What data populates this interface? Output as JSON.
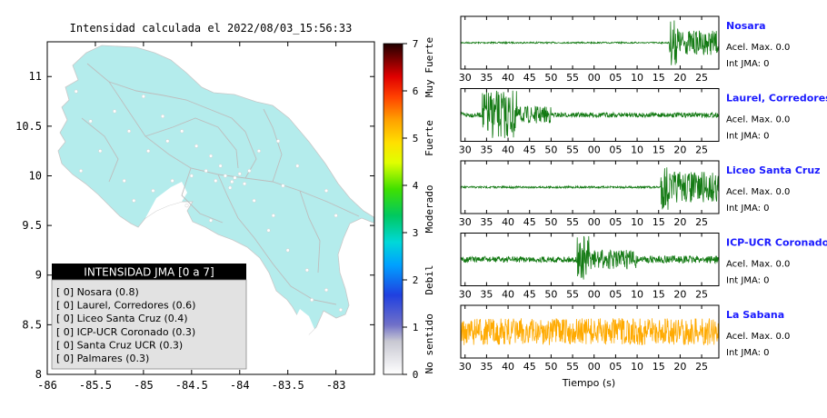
{
  "map": {
    "title": "Intensidad calculada el 2022/08/03_15:56:33",
    "sea_color": "#ffffff",
    "land_color": "#b4ecec",
    "x_ticks": [
      "-86",
      "-85.5",
      "-85",
      "-84.5",
      "-84",
      "-83.5",
      "-83"
    ],
    "y_ticks": [
      "11",
      "10.5",
      "10",
      "9.5",
      "9",
      "8.5",
      "8"
    ],
    "legend": {
      "title": "INTENSIDAD JMA [0 a 7]",
      "items": [
        "[ 0]  Nosara (0.8)",
        "[ 0]  Laurel, Corredores (0.6)",
        "[ 0]  Liceo Santa Cruz (0.4)",
        "[ 0]  ICP-UCR Coronado (0.3)",
        "[ 0]  Santa Cruz UCR (0.3)",
        "[ 0]  Palmares (0.3)"
      ]
    }
  },
  "colorbar": {
    "ticks": [
      "0",
      "1",
      "2",
      "3",
      "4",
      "5",
      "6",
      "7"
    ],
    "labels": [
      "No sentido",
      "Debil",
      "Moderado",
      "Fuerte",
      "Muy Fuerte"
    ]
  },
  "waveforms": {
    "x_axis_label": "Tiempo (s)",
    "panels": [
      {
        "station": "Nosara",
        "acel": "Acel. Max. 0.0",
        "int": "Int JMA: 0",
        "color": "#137a13",
        "ticks": [
          "30",
          "35",
          "40",
          "45",
          "50",
          "55",
          "00",
          "05",
          "10",
          "15",
          "20",
          "25"
        ]
      },
      {
        "station": "Laurel, Corredores",
        "acel": "Acel. Max. 0.0",
        "int": "Int JMA: 0",
        "color": "#137a13",
        "ticks": [
          "30",
          "35",
          "40",
          "45",
          "50",
          "55",
          "00",
          "05",
          "10",
          "15",
          "20",
          "25"
        ]
      },
      {
        "station": "Liceo Santa Cruz",
        "acel": "Acel. Max. 0.0",
        "int": "Int JMA: 0",
        "color": "#137a13",
        "ticks": [
          "30",
          "35",
          "40",
          "45",
          "50",
          "55",
          "00",
          "05",
          "10",
          "15",
          "20",
          "25"
        ]
      },
      {
        "station": "ICP-UCR Coronado",
        "acel": "Acel. Max. 0.0",
        "int": "Int JMA: 0",
        "color": "#137a13",
        "ticks": [
          "30",
          "35",
          "40",
          "45",
          "50",
          "55",
          "00",
          "05",
          "10",
          "15",
          "20",
          "25"
        ]
      },
      {
        "station": "La Sabana",
        "acel": "Acel. Max. 0.0",
        "int": "Int JMA: 0",
        "color": "#ffaa00",
        "ticks": [
          "30",
          "35",
          "40",
          "45",
          "50",
          "55",
          "00",
          "05",
          "10",
          "15",
          "20",
          "25"
        ]
      }
    ]
  },
  "chart_data": [
    {
      "type": "scatter",
      "title": "Intensidad calculada el 2022/08/03_15:56:33",
      "xlabel": "",
      "ylabel": "",
      "xlim": [
        -86,
        -82.6
      ],
      "ylim": [
        8,
        11.35
      ],
      "x_ticks": [
        -86,
        -85.5,
        -85,
        -84.5,
        -84,
        -83.5,
        -83
      ],
      "y_ticks": [
        8,
        8.5,
        9,
        9.5,
        10,
        10.5,
        11
      ],
      "legend_placement": "bottom-left",
      "series": [
        {
          "name": "INTENSIDAD JMA [0 a 7]",
          "points": [
            {
              "x": -85.65,
              "y": 10.05
            },
            {
              "x": -85.45,
              "y": 10.25
            },
            {
              "x": -85.55,
              "y": 10.55
            },
            {
              "x": -85.3,
              "y": 10.65
            },
            {
              "x": -85.0,
              "y": 10.8
            },
            {
              "x": -84.8,
              "y": 10.6
            },
            {
              "x": -84.6,
              "y": 10.45
            },
            {
              "x": -84.45,
              "y": 10.3
            },
            {
              "x": -84.3,
              "y": 10.2
            },
            {
              "x": -84.2,
              "y": 10.1
            },
            {
              "x": -84.15,
              "y": 10.0
            },
            {
              "x": -84.08,
              "y": 9.94
            },
            {
              "x": -84.05,
              "y": 9.98
            },
            {
              "x": -83.95,
              "y": 9.92
            },
            {
              "x": -83.9,
              "y": 10.05
            },
            {
              "x": -84.0,
              "y": 10.02
            },
            {
              "x": -84.1,
              "y": 9.88
            },
            {
              "x": -84.25,
              "y": 9.95
            },
            {
              "x": -84.35,
              "y": 10.05
            },
            {
              "x": -84.5,
              "y": 10.0
            },
            {
              "x": -84.7,
              "y": 9.95
            },
            {
              "x": -84.9,
              "y": 9.85
            },
            {
              "x": -85.1,
              "y": 9.75
            },
            {
              "x": -85.2,
              "y": 9.95
            },
            {
              "x": -84.95,
              "y": 10.25
            },
            {
              "x": -84.75,
              "y": 10.35
            },
            {
              "x": -83.8,
              "y": 10.25
            },
            {
              "x": -83.6,
              "y": 10.35
            },
            {
              "x": -83.4,
              "y": 10.1
            },
            {
              "x": -83.1,
              "y": 9.85
            },
            {
              "x": -83.0,
              "y": 9.6
            },
            {
              "x": -83.7,
              "y": 9.45
            },
            {
              "x": -83.65,
              "y": 9.6
            },
            {
              "x": -83.5,
              "y": 9.25
            },
            {
              "x": -83.3,
              "y": 9.05
            },
            {
              "x": -83.1,
              "y": 8.85
            },
            {
              "x": -82.95,
              "y": 8.65
            },
            {
              "x": -83.25,
              "y": 8.75
            },
            {
              "x": -84.3,
              "y": 9.55
            },
            {
              "x": -84.55,
              "y": 9.7
            },
            {
              "x": -85.15,
              "y": 10.45
            },
            {
              "x": -85.7,
              "y": 10.85
            },
            {
              "x": -83.55,
              "y": 9.9
            },
            {
              "x": -83.85,
              "y": 9.75
            }
          ]
        }
      ]
    },
    {
      "type": "heatmap",
      "title": "",
      "ylabel": "",
      "ylim": [
        0,
        7
      ],
      "ticks": [
        0,
        1,
        2,
        3,
        4,
        5,
        6,
        7
      ],
      "labels": [
        "No sentido",
        "Debil",
        "Moderado",
        "Fuerte",
        "Muy Fuerte"
      ]
    },
    {
      "type": "line",
      "title": "",
      "xlabel": "Tiempo (s)",
      "ylabel": "",
      "x_tick_labels": [
        "30",
        "35",
        "40",
        "45",
        "50",
        "55",
        "00",
        "05",
        "10",
        "15",
        "20",
        "25"
      ],
      "xlim": [
        29,
        89
      ],
      "series": [
        {
          "name": "Nosara",
          "segments": [
            {
              "t0": 29,
              "t1": 77.5,
              "amp": 0.03
            },
            {
              "t0": 77.5,
              "t1": 79.5,
              "amp": 0.95
            },
            {
              "t0": 79.5,
              "t1": 89,
              "amp": 0.5
            }
          ]
        },
        {
          "name": "Laurel, Corredores",
          "segments": [
            {
              "t0": 29,
              "t1": 34,
              "amp": 0.1
            },
            {
              "t0": 34,
              "t1": 42,
              "amp": 1.0
            },
            {
              "t0": 42,
              "t1": 50,
              "amp": 0.35
            },
            {
              "t0": 50,
              "t1": 89,
              "amp": 0.1
            }
          ]
        },
        {
          "name": "Liceo Santa Cruz",
          "segments": [
            {
              "t0": 29,
              "t1": 75.5,
              "amp": 0.04
            },
            {
              "t0": 75.5,
              "t1": 77.5,
              "amp": 0.95
            },
            {
              "t0": 77.5,
              "t1": 89,
              "amp": 0.65
            }
          ]
        },
        {
          "name": "ICP-UCR Coronado",
          "segments": [
            {
              "t0": 29,
              "t1": 56,
              "amp": 0.12
            },
            {
              "t0": 56,
              "t1": 59,
              "amp": 0.95
            },
            {
              "t0": 59,
              "t1": 70,
              "amp": 0.4
            },
            {
              "t0": 70,
              "t1": 89,
              "amp": 0.15
            }
          ]
        },
        {
          "name": "La Sabana",
          "segments": [
            {
              "t0": 29,
              "t1": 89,
              "amp": 0.55
            }
          ]
        }
      ]
    }
  ]
}
